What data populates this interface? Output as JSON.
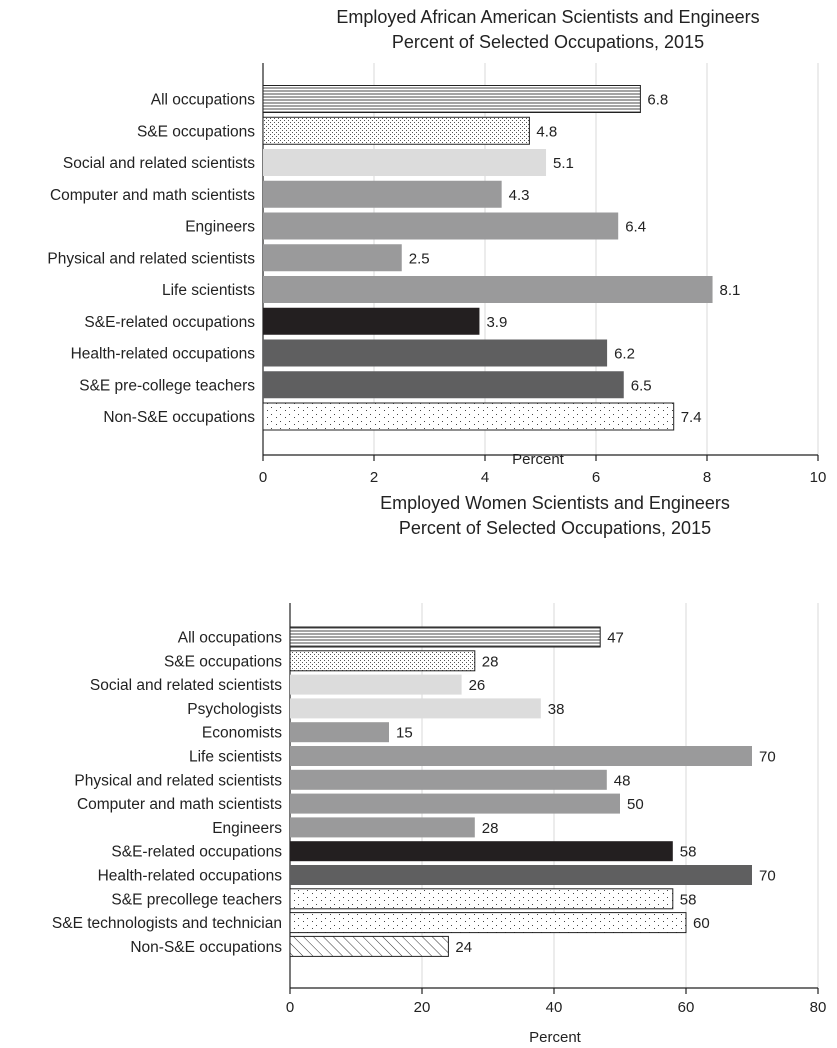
{
  "chart_data": [
    {
      "type": "bar",
      "orientation": "horizontal",
      "title": "Employed African American Scientists and Engineers",
      "subtitle": "Percent of Selected Occupations, 2015",
      "xlabel": "Percent",
      "ylabel": "",
      "xlim": [
        0,
        10
      ],
      "ticks": [
        0,
        2,
        4,
        6,
        8,
        10
      ],
      "grid": "vertical",
      "categories": [
        "All occupations",
        "S&E occupations",
        "Social and related scientists",
        "Computer and math scientists",
        "Engineers",
        "Physical and related scientists",
        "Life scientists",
        "S&E-related occupations",
        "Health-related occupations",
        "S&E pre-college teachers",
        "Non-S&E occupations"
      ],
      "values": [
        6.8,
        4.8,
        5.1,
        4.3,
        6.4,
        2.5,
        8.1,
        3.9,
        6.2,
        6.5,
        7.4
      ],
      "value_labels": [
        "6.8",
        "4.8",
        "5.1",
        "4.3",
        "6.4",
        "2.5",
        "8.1",
        "3.9",
        "6.2",
        "6.5",
        "7.4"
      ],
      "fills": [
        "hlines",
        "diag-dots",
        "#dcdcdc",
        "#9a9a9b",
        "#9a9a9b",
        "#9a9a9b",
        "#9a9a9b",
        "#231f20",
        "#5f5f60",
        "#5f5f60",
        "dots"
      ]
    },
    {
      "type": "bar",
      "orientation": "horizontal",
      "title": "Employed Women Scientists and Engineers",
      "subtitle": "Percent of Selected Occupations, 2015",
      "xlabel": "Percent",
      "ylabel": "",
      "xlim": [
        0,
        80
      ],
      "ticks": [
        0,
        20,
        40,
        60,
        80
      ],
      "grid": "vertical",
      "categories": [
        "All occupations",
        "S&E occupations",
        "Social and related scientists",
        "Psychologists",
        "Economists",
        "Life scientists",
        "Physical and related scientists",
        "Computer and math scientists",
        "Engineers",
        "S&E-related occupations",
        "Health-related occupations",
        "S&E precollege teachers",
        "S&E technologists and technician",
        "Non-S&E occupations"
      ],
      "values": [
        47,
        28,
        26,
        38,
        15,
        70,
        48,
        50,
        28,
        58,
        70,
        58,
        60,
        24
      ],
      "value_labels": [
        "47",
        "28",
        "26",
        "38",
        "15",
        "70",
        "48",
        "50",
        "28",
        "58",
        "70",
        "58",
        "60",
        "24"
      ],
      "fills": [
        "hlines",
        "diag-dots",
        "#dcdcdc",
        "#dcdcdc",
        "#9a9a9b",
        "#9a9a9b",
        "#9a9a9b",
        "#9a9a9b",
        "#9a9a9b",
        "#231f20",
        "#5f5f60",
        "dots",
        "dots",
        "hatch"
      ]
    }
  ]
}
